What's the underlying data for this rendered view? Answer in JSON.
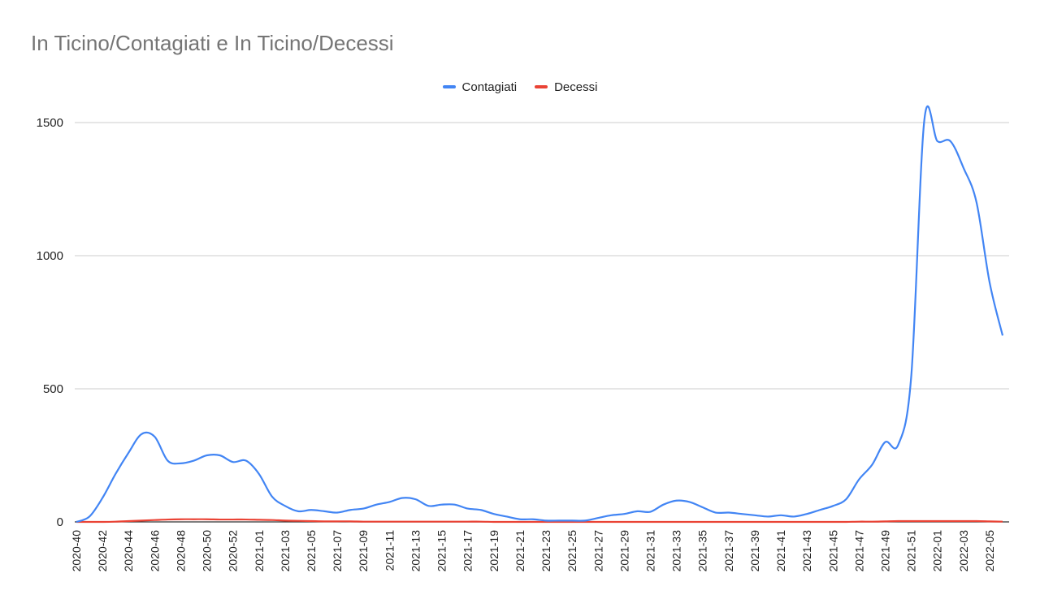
{
  "chart_data": {
    "type": "line",
    "title": "In Ticino/Contagiati e In Ticino/Decessi",
    "xlabel": "",
    "ylabel": "",
    "ylim": [
      0,
      1500
    ],
    "yticks": [
      0,
      500,
      1000,
      1500
    ],
    "grid": true,
    "legend_position": "top-center",
    "x": [
      "2020-40",
      "2020-41",
      "2020-42",
      "2020-43",
      "2020-44",
      "2020-45",
      "2020-46",
      "2020-47",
      "2020-48",
      "2020-49",
      "2020-50",
      "2020-51",
      "2020-52",
      "2020-53",
      "2021-01",
      "2021-02",
      "2021-03",
      "2021-04",
      "2021-05",
      "2021-06",
      "2021-07",
      "2021-08",
      "2021-09",
      "2021-10",
      "2021-11",
      "2021-12",
      "2021-13",
      "2021-14",
      "2021-15",
      "2021-16",
      "2021-17",
      "2021-18",
      "2021-19",
      "2021-20",
      "2021-21",
      "2021-22",
      "2021-23",
      "2021-24",
      "2021-25",
      "2021-26",
      "2021-27",
      "2021-28",
      "2021-29",
      "2021-30",
      "2021-31",
      "2021-32",
      "2021-33",
      "2021-34",
      "2021-35",
      "2021-36",
      "2021-37",
      "2021-38",
      "2021-39",
      "2021-40",
      "2021-41",
      "2021-42",
      "2021-43",
      "2021-44",
      "2021-45",
      "2021-46",
      "2021-47",
      "2021-48",
      "2021-49",
      "2021-50",
      "2021-51",
      "2021-52",
      "2022-01",
      "2022-02",
      "2022-03",
      "2022-04",
      "2022-05",
      "2022-06"
    ],
    "x_tick_labels": [
      "2020-40",
      "2020-42",
      "2020-44",
      "2020-46",
      "2020-48",
      "2020-50",
      "2020-52",
      "2021-01",
      "2021-03",
      "2021-05",
      "2021-07",
      "2021-09",
      "2021-11",
      "2021-13",
      "2021-15",
      "2021-17",
      "2021-19",
      "2021-21",
      "2021-23",
      "2021-25",
      "2021-27",
      "2021-29",
      "2021-31",
      "2021-33",
      "2021-35",
      "2021-37",
      "2021-39",
      "2021-41",
      "2021-43",
      "2021-45",
      "2021-47",
      "2021-49",
      "2021-51",
      "2022-01",
      "2022-03",
      "2022-05"
    ],
    "series": [
      {
        "name": "Contagiati",
        "color": "#4285F4",
        "values": [
          0,
          20,
          90,
          180,
          260,
          330,
          320,
          230,
          220,
          230,
          250,
          250,
          225,
          230,
          180,
          95,
          60,
          40,
          45,
          40,
          35,
          45,
          50,
          65,
          75,
          90,
          85,
          60,
          65,
          65,
          50,
          45,
          30,
          20,
          10,
          10,
          5,
          5,
          5,
          5,
          15,
          25,
          30,
          40,
          38,
          65,
          80,
          75,
          55,
          35,
          35,
          30,
          25,
          20,
          25,
          20,
          30,
          45,
          60,
          85,
          160,
          215,
          300,
          290,
          550,
          1510,
          1430,
          1430,
          1330,
          1200,
          900,
          700
        ]
      },
      {
        "name": "Decessi",
        "color": "#EA4335",
        "values": [
          0,
          0,
          0,
          1,
          3,
          5,
          7,
          9,
          10,
          10,
          10,
          9,
          9,
          9,
          8,
          7,
          5,
          4,
          3,
          2,
          2,
          2,
          1,
          1,
          1,
          1,
          1,
          1,
          1,
          1,
          1,
          1,
          0,
          0,
          0,
          0,
          0,
          0,
          0,
          0,
          0,
          0,
          0,
          0,
          0,
          0,
          0,
          0,
          0,
          0,
          0,
          0,
          0,
          0,
          0,
          0,
          0,
          0,
          0,
          0,
          1,
          1,
          2,
          3,
          3,
          3,
          3,
          3,
          3,
          3,
          2,
          1
        ]
      }
    ]
  }
}
